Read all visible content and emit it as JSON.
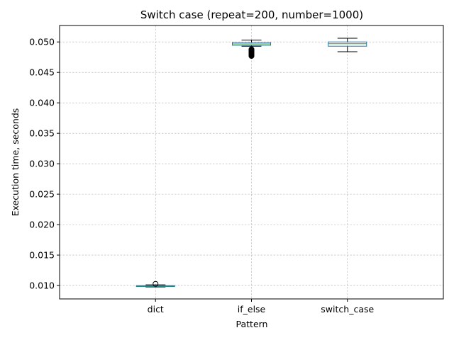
{
  "chart_data": {
    "type": "box",
    "title": "Switch case (repeat=200, number=1000)",
    "xlabel": "Pattern",
    "ylabel": "Execution time, seconds",
    "categories": [
      "dict",
      "if_else",
      "switch_case"
    ],
    "ylim": [
      0.0078,
      0.0527
    ],
    "yticks": [
      0.01,
      0.015,
      0.02,
      0.025,
      0.03,
      0.035,
      0.04,
      0.045,
      0.05
    ],
    "ytick_labels": [
      "0.010",
      "0.015",
      "0.020",
      "0.025",
      "0.030",
      "0.035",
      "0.040",
      "0.045",
      "0.050"
    ],
    "grid": true,
    "boxes": [
      {
        "category": "dict",
        "whisker_low": 0.00976,
        "q1": 0.00983,
        "median": 0.00991,
        "q3": 0.00998,
        "whisker_high": 0.01011,
        "outliers": [
          0.01027
        ]
      },
      {
        "category": "if_else",
        "whisker_low": 0.0493,
        "q1": 0.04945,
        "median": 0.04968,
        "q3": 0.0499,
        "whisker_high": 0.0503,
        "outliers": [
          0.0477,
          0.0478,
          0.0479,
          0.048,
          0.0481,
          0.0482,
          0.0483,
          0.0484,
          0.0485,
          0.0486,
          0.0487,
          0.0488
        ]
      },
      {
        "category": "switch_case",
        "whisker_low": 0.0484,
        "q1": 0.0493,
        "median": 0.0497,
        "q3": 0.05,
        "whisker_high": 0.0506,
        "outliers": []
      }
    ],
    "colors": {
      "box": "#1f77b4",
      "median": "#2ca02c",
      "whisker": "#000000",
      "grid": "#b0b0b0",
      "outlier_fill": "#000000"
    }
  }
}
